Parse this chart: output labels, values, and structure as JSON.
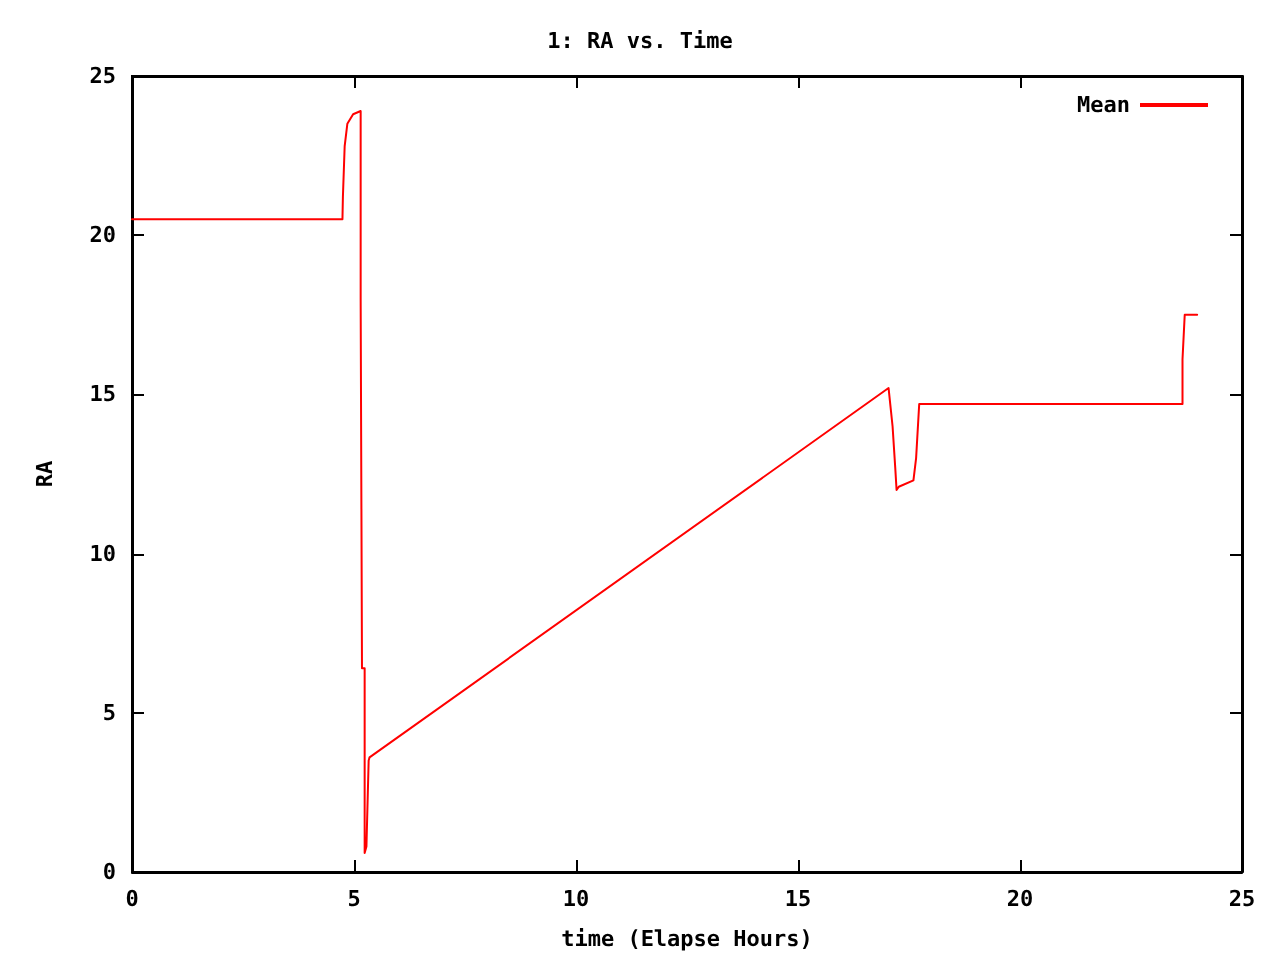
{
  "chart_data": {
    "type": "line",
    "title": "1: RA vs. Time",
    "xlabel": "time (Elapse Hours)",
    "ylabel": "RA",
    "x": [
      0,
      4.74,
      4.75,
      4.79,
      4.85,
      4.98,
      5.15,
      5.15,
      5.18,
      5.18,
      5.24,
      5.24,
      5.28,
      5.33,
      5.35,
      17.04,
      17.13,
      17.19,
      17.22,
      17.27,
      17.6,
      17.66,
      17.73,
      23.66,
      23.66,
      23.71,
      23.99
    ],
    "series": [
      {
        "name": "Mean",
        "color": "#ff0000",
        "values": [
          20.5,
          20.5,
          21.2,
          22.8,
          23.5,
          23.8,
          23.9,
          18.0,
          18.0,
          6.4,
          6.4,
          0.6,
          0.8,
          3.5,
          3.6,
          15.2,
          14.0,
          12.7,
          12.0,
          12.1,
          12.3,
          13.0,
          14.7,
          14.7,
          16.1,
          17.5,
          17.5
        ]
      }
    ],
    "xlim": [
      0,
      25
    ],
    "xticks": [
      0,
      5,
      10,
      15,
      20,
      25
    ],
    "ylim": [
      0,
      25
    ],
    "yticks": [
      0,
      5,
      10,
      15,
      20,
      25
    ],
    "grid": false,
    "legend": "top right",
    "marker": "none",
    "line_style": "solid"
  }
}
